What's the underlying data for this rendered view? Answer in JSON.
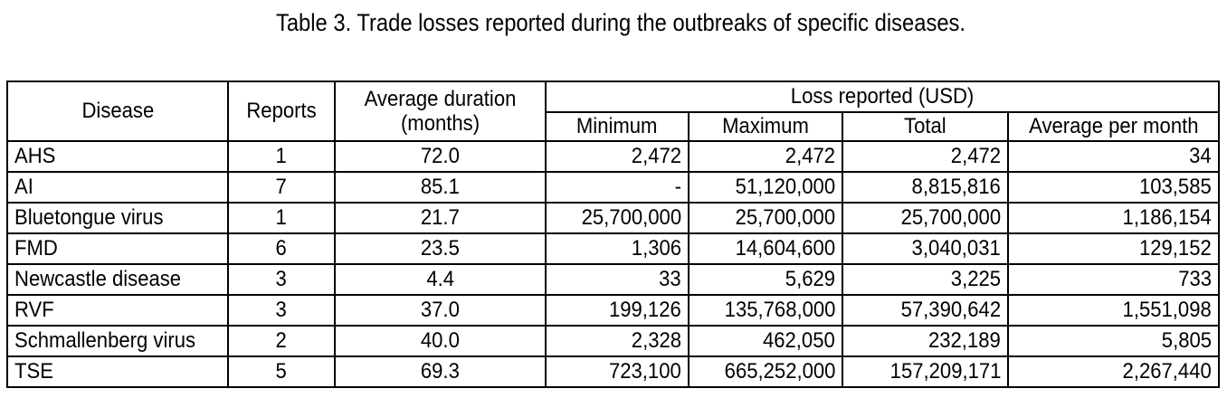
{
  "title": "Table 3. Trade losses reported during the outbreaks of specific diseases.",
  "header": {
    "disease": "Disease",
    "reports": "Reports",
    "duration_line1": "Average duration",
    "duration_line2": "(months)",
    "loss_group": "Loss reported (USD)",
    "minimum": "Minimum",
    "maximum": "Maximum",
    "total": "Total",
    "average": "Average per month"
  },
  "rows": [
    {
      "disease": "AHS",
      "reports": "1",
      "duration": "72.0",
      "minimum": "2,472",
      "maximum": "2,472",
      "total": "2,472",
      "average": "34"
    },
    {
      "disease": "AI",
      "reports": "7",
      "duration": "85.1",
      "minimum": "-",
      "maximum": "51,120,000",
      "total": "8,815,816",
      "average": "103,585"
    },
    {
      "disease": "Bluetongue virus",
      "reports": "1",
      "duration": "21.7",
      "minimum": "25,700,000",
      "maximum": "25,700,000",
      "total": "25,700,000",
      "average": "1,186,154"
    },
    {
      "disease": "FMD",
      "reports": "6",
      "duration": "23.5",
      "minimum": "1,306",
      "maximum": "14,604,600",
      "total": "3,040,031",
      "average": "129,152"
    },
    {
      "disease": "Newcastle disease",
      "reports": "3",
      "duration": "4.4",
      "minimum": "33",
      "maximum": "5,629",
      "total": "3,225",
      "average": "733"
    },
    {
      "disease": "RVF",
      "reports": "3",
      "duration": "37.0",
      "minimum": "199,126",
      "maximum": "135,768,000",
      "total": "57,390,642",
      "average": "1,551,098"
    },
    {
      "disease": "Schmallenberg virus",
      "reports": "2",
      "duration": "40.0",
      "minimum": "2,328",
      "maximum": "462,050",
      "total": "232,189",
      "average": "5,805"
    },
    {
      "disease": "TSE",
      "reports": "5",
      "duration": "69.3",
      "minimum": "723,100",
      "maximum": "665,252,000",
      "total": "157,209,171",
      "average": "2,267,440"
    }
  ]
}
